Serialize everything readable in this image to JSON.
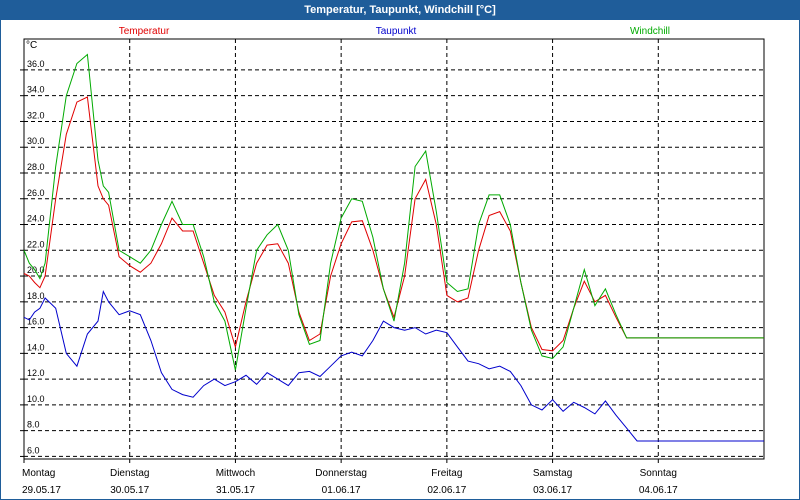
{
  "window": {
    "title": "Temperatur, Taupunkt, Windchill [°C]"
  },
  "chart_data": {
    "type": "line",
    "title": "Temperatur, Taupunkt, Windchill [°C]",
    "ylabel": "°C",
    "ylim": [
      5.8,
      38.4
    ],
    "yticks": [
      6.0,
      8.0,
      10.0,
      12.0,
      14.0,
      16.0,
      18.0,
      20.0,
      22.0,
      24.0,
      26.0,
      28.0,
      30.0,
      32.0,
      34.0,
      36.0
    ],
    "ytick_labels": [
      "6.0",
      "8.0",
      "10.0",
      "12.0",
      "14.0",
      "16.0",
      "18.0",
      "20.0",
      "22.0",
      "24.0",
      "26.0",
      "28.0",
      "30.0",
      "32.0",
      "34.0",
      "36.0"
    ],
    "xlim": [
      0,
      7
    ],
    "xticks": [
      {
        "day": "Montag",
        "date": "29.05.17"
      },
      {
        "day": "Dienstag",
        "date": "30.05.17"
      },
      {
        "day": "Mittwoch",
        "date": "31.05.17"
      },
      {
        "day": "Donnerstag",
        "date": "01.06.17"
      },
      {
        "day": "Freitag",
        "date": "02.06.17"
      },
      {
        "day": "Samstag",
        "date": "03.06.17"
      },
      {
        "day": "Sonntag",
        "date": "04.06.17"
      }
    ],
    "grid": true,
    "series": [
      {
        "name": "Temperatur",
        "color": "#e00000",
        "x": [
          0,
          0.05,
          0.1,
          0.15,
          0.2,
          0.3,
          0.4,
          0.5,
          0.6,
          0.7,
          0.75,
          0.8,
          0.9,
          1.0,
          1.1,
          1.2,
          1.3,
          1.4,
          1.5,
          1.6,
          1.7,
          1.8,
          1.9,
          2.0,
          2.1,
          2.2,
          2.3,
          2.4,
          2.5,
          2.6,
          2.7,
          2.8,
          2.9,
          3.0,
          3.1,
          3.2,
          3.3,
          3.4,
          3.5,
          3.6,
          3.7,
          3.8,
          3.9,
          4.0,
          4.1,
          4.2,
          4.3,
          4.4,
          4.5,
          4.6,
          4.7,
          4.8,
          4.9,
          5.0,
          5.1,
          5.2,
          5.3,
          5.4,
          5.5,
          5.6,
          5.7,
          5.8,
          5.9,
          6.0,
          6.1,
          6.2,
          6.3,
          6.4,
          6.5,
          6.6,
          6.7,
          6.8,
          6.9,
          7.0
        ],
        "values": [
          20.2,
          20.0,
          19.5,
          19.1,
          20.0,
          26.0,
          31.0,
          33.5,
          33.9,
          27.0,
          26.0,
          25.5,
          21.5,
          20.8,
          20.3,
          21.0,
          22.5,
          24.5,
          23.5,
          23.5,
          21.0,
          18.5,
          17.2,
          14.5,
          18.0,
          21.0,
          22.4,
          22.5,
          21.0,
          17.2,
          15.0,
          15.5,
          20.0,
          22.5,
          24.2,
          24.3,
          22.0,
          19.0,
          16.8,
          20.0,
          26.0,
          27.5,
          24.0,
          18.5,
          18.0,
          18.3,
          22.0,
          24.7,
          25.0,
          23.5,
          19.5,
          16.0,
          14.3,
          14.2,
          15.0,
          17.5,
          19.6,
          18.0,
          18.5,
          16.8,
          15.2,
          15.2,
          15.2,
          15.2,
          15.2,
          15.2,
          15.2,
          15.2,
          15.2,
          15.2,
          15.2,
          15.2,
          15.2,
          15.2
        ]
      },
      {
        "name": "Taupunkt",
        "color": "#0000cc",
        "x": [
          0,
          0.05,
          0.1,
          0.15,
          0.2,
          0.3,
          0.4,
          0.5,
          0.6,
          0.7,
          0.75,
          0.8,
          0.9,
          1.0,
          1.1,
          1.2,
          1.3,
          1.4,
          1.5,
          1.6,
          1.7,
          1.8,
          1.9,
          2.0,
          2.1,
          2.2,
          2.3,
          2.4,
          2.5,
          2.6,
          2.7,
          2.8,
          2.9,
          3.0,
          3.1,
          3.2,
          3.3,
          3.4,
          3.5,
          3.6,
          3.7,
          3.8,
          3.9,
          4.0,
          4.1,
          4.2,
          4.3,
          4.4,
          4.5,
          4.6,
          4.7,
          4.8,
          4.9,
          5.0,
          5.1,
          5.2,
          5.3,
          5.4,
          5.5,
          5.6,
          5.7,
          5.8,
          5.9,
          6.0,
          6.1,
          6.2,
          6.3,
          6.4,
          6.5,
          6.6,
          6.7,
          6.8,
          6.9,
          7.0
        ],
        "values": [
          16.8,
          16.6,
          17.2,
          17.5,
          18.3,
          17.5,
          14.0,
          13.0,
          15.5,
          16.5,
          18.8,
          18.0,
          17.0,
          17.3,
          17.0,
          15.0,
          12.5,
          11.2,
          10.8,
          10.6,
          11.5,
          12.0,
          11.5,
          11.8,
          12.3,
          11.6,
          12.5,
          12.0,
          11.5,
          12.5,
          12.6,
          12.2,
          13.0,
          13.8,
          14.1,
          13.8,
          15.0,
          16.5,
          16.0,
          15.8,
          16.0,
          15.5,
          15.8,
          15.6,
          14.5,
          13.4,
          13.2,
          12.8,
          13.0,
          12.6,
          11.5,
          10.0,
          9.6,
          10.4,
          9.5,
          10.2,
          9.8,
          9.3,
          10.3,
          9.2,
          8.2,
          7.2,
          7.2,
          7.2,
          7.2,
          7.2,
          7.2,
          7.2,
          7.2,
          7.2,
          7.2,
          7.2,
          7.2,
          7.2
        ]
      },
      {
        "name": "Windchill",
        "color": "#00aa00",
        "x": [
          0,
          0.05,
          0.1,
          0.15,
          0.2,
          0.3,
          0.4,
          0.5,
          0.6,
          0.7,
          0.75,
          0.8,
          0.9,
          1.0,
          1.1,
          1.2,
          1.3,
          1.4,
          1.5,
          1.6,
          1.7,
          1.8,
          1.9,
          2.0,
          2.1,
          2.2,
          2.3,
          2.4,
          2.5,
          2.6,
          2.7,
          2.8,
          2.9,
          3.0,
          3.1,
          3.2,
          3.3,
          3.4,
          3.5,
          3.6,
          3.7,
          3.8,
          3.9,
          4.0,
          4.1,
          4.2,
          4.3,
          4.4,
          4.5,
          4.6,
          4.7,
          4.8,
          4.9,
          5.0,
          5.1,
          5.2,
          5.3,
          5.4,
          5.5,
          5.6,
          5.7,
          5.8,
          5.9,
          6.0,
          6.1,
          6.2,
          6.3,
          6.4,
          6.5,
          6.6,
          6.7,
          6.8,
          6.9,
          7.0
        ],
        "values": [
          22.0,
          21.0,
          20.5,
          19.8,
          21.0,
          28.5,
          34.0,
          36.5,
          37.2,
          29.0,
          27.0,
          26.5,
          22.0,
          21.5,
          21.0,
          22.0,
          24.0,
          25.8,
          24.0,
          24.0,
          21.5,
          18.0,
          16.5,
          12.7,
          17.5,
          22.0,
          23.2,
          24.0,
          22.0,
          17.0,
          14.7,
          15.0,
          21.0,
          24.5,
          26.0,
          25.8,
          23.0,
          19.0,
          16.5,
          21.0,
          28.5,
          29.7,
          25.0,
          19.5,
          18.8,
          19.0,
          24.0,
          26.3,
          26.3,
          24.0,
          19.5,
          15.8,
          13.8,
          13.6,
          14.5,
          17.5,
          20.5,
          17.7,
          19.0,
          17.0,
          15.2,
          15.2,
          15.2,
          15.2,
          15.2,
          15.2,
          15.2,
          15.2,
          15.2,
          15.2,
          15.2,
          15.2,
          15.2,
          15.2
        ]
      }
    ]
  }
}
